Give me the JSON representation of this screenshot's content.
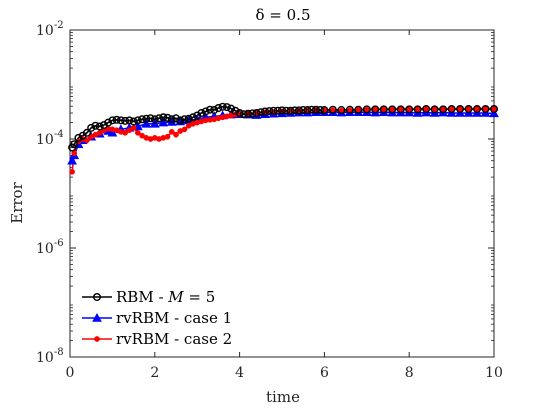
{
  "chart_data": {
    "type": "line",
    "title": "δ = 0.5",
    "xlabel": "time",
    "ylabel": "Error",
    "xlim": [
      0,
      10
    ],
    "ylim": [
      1e-08,
      0.01
    ],
    "yscale": "log",
    "grid": false,
    "legend_position": "bottom-left",
    "x_ticks": [
      "0",
      "2",
      "4",
      "6",
      "8",
      "10"
    ],
    "y_ticks": [
      {
        "base": "10",
        "exp": "-8"
      },
      {
        "base": "10",
        "exp": "-6"
      },
      {
        "base": "10",
        "exp": "-4"
      },
      {
        "base": "10",
        "exp": "-2"
      }
    ],
    "series": [
      {
        "name": "RBM - M = 5",
        "legend_main": "RBM - ",
        "legend_italic": "M",
        "legend_tail": " = 5",
        "color": "#000000",
        "marker": "circle",
        "points": [
          [
            0.05,
            7e-05
          ],
          [
            0.1,
            8e-05
          ],
          [
            0.2,
            0.000105
          ],
          [
            0.3,
            0.000115
          ],
          [
            0.4,
            0.00013
          ],
          [
            0.5,
            0.00016
          ],
          [
            0.6,
            0.000175
          ],
          [
            0.7,
            0.00017
          ],
          [
            0.8,
            0.00018
          ],
          [
            0.9,
            0.0002
          ],
          [
            1.0,
            0.00022
          ],
          [
            1.1,
            0.000225
          ],
          [
            1.2,
            0.00022
          ],
          [
            1.3,
            0.000215
          ],
          [
            1.4,
            0.00022
          ],
          [
            1.5,
            0.00021
          ],
          [
            1.6,
            0.00022
          ],
          [
            1.7,
            0.00023
          ],
          [
            1.8,
            0.000235
          ],
          [
            1.9,
            0.00024
          ],
          [
            2.0,
            0.00023
          ],
          [
            2.1,
            0.00024
          ],
          [
            2.2,
            0.00025
          ],
          [
            2.3,
            0.000245
          ],
          [
            2.4,
            0.00023
          ],
          [
            2.5,
            0.00024
          ],
          [
            2.6,
            0.00022
          ],
          [
            2.7,
            0.00023
          ],
          [
            2.8,
            0.000235
          ],
          [
            2.9,
            0.00025
          ],
          [
            3.0,
            0.00027
          ],
          [
            3.1,
            0.0003
          ],
          [
            3.2,
            0.00032
          ],
          [
            3.3,
            0.000345
          ],
          [
            3.4,
            0.00034
          ],
          [
            3.5,
            0.00037
          ],
          [
            3.6,
            0.00039
          ],
          [
            3.7,
            0.000385
          ],
          [
            3.8,
            0.00036
          ],
          [
            3.9,
            0.00033
          ],
          [
            4.0,
            0.0003
          ],
          [
            4.1,
            0.000285
          ],
          [
            4.2,
            0.00029
          ],
          [
            4.3,
            0.000295
          ],
          [
            4.4,
            0.0003
          ],
          [
            4.5,
            0.00031
          ],
          [
            4.6,
            0.00032
          ],
          [
            4.7,
            0.000325
          ],
          [
            4.8,
            0.00033
          ],
          [
            4.9,
            0.00033
          ],
          [
            5.0,
            0.000335
          ],
          [
            5.1,
            0.00033
          ],
          [
            5.2,
            0.00033
          ],
          [
            5.3,
            0.000335
          ],
          [
            5.4,
            0.000335
          ],
          [
            5.5,
            0.00034
          ],
          [
            5.6,
            0.00034
          ],
          [
            5.7,
            0.000345
          ],
          [
            5.8,
            0.000345
          ],
          [
            5.9,
            0.00034
          ],
          [
            6.0,
            0.00034
          ],
          [
            6.2,
            0.000345
          ],
          [
            6.4,
            0.00034
          ],
          [
            6.6,
            0.000345
          ],
          [
            6.8,
            0.000345
          ],
          [
            7.0,
            0.00035
          ],
          [
            7.2,
            0.00035
          ],
          [
            7.4,
            0.00035
          ],
          [
            7.6,
            0.00035
          ],
          [
            7.8,
            0.00035
          ],
          [
            8.0,
            0.00035
          ],
          [
            8.2,
            0.00035
          ],
          [
            8.4,
            0.000355
          ],
          [
            8.6,
            0.00035
          ],
          [
            8.8,
            0.00035
          ],
          [
            9.0,
            0.000355
          ],
          [
            9.2,
            0.000355
          ],
          [
            9.4,
            0.000355
          ],
          [
            9.6,
            0.000355
          ],
          [
            9.8,
            0.000355
          ],
          [
            10.0,
            0.000355
          ]
        ]
      },
      {
        "name": "rvRBM - case 1",
        "legend_main": "rvRBM - case 1",
        "legend_italic": "",
        "legend_tail": "",
        "color": "#0000ff",
        "marker": "triangle",
        "points": [
          [
            0.05,
            4e-05
          ],
          [
            0.1,
            5e-05
          ],
          [
            0.2,
            8e-05
          ],
          [
            0.3,
            9.5e-05
          ],
          [
            0.5,
            0.00011
          ],
          [
            0.7,
            0.000125
          ],
          [
            0.9,
            0.00014
          ],
          [
            1.0,
            0.00013
          ],
          [
            1.2,
            0.00015
          ],
          [
            1.4,
            0.00016
          ],
          [
            1.6,
            0.00017
          ],
          [
            1.8,
            0.00019
          ],
          [
            2.0,
            0.00019
          ],
          [
            2.2,
            0.0002
          ],
          [
            2.4,
            0.000205
          ],
          [
            2.6,
            0.00021
          ],
          [
            2.8,
            0.00022
          ],
          [
            3.0,
            0.00023
          ],
          [
            3.2,
            0.00025
          ],
          [
            3.4,
            0.00026
          ],
          [
            3.6,
            0.00027
          ],
          [
            3.8,
            0.00028
          ],
          [
            4.0,
            0.000285
          ],
          [
            4.2,
            0.00028
          ],
          [
            4.4,
            0.000275
          ],
          [
            4.6,
            0.000285
          ],
          [
            4.8,
            0.00029
          ],
          [
            5.0,
            0.000295
          ],
          [
            5.2,
            0.0003
          ],
          [
            5.4,
            0.000305
          ],
          [
            5.6,
            0.000305
          ],
          [
            5.8,
            0.00031
          ],
          [
            6.0,
            0.00031
          ],
          [
            6.2,
            0.00031
          ],
          [
            6.4,
            0.000305
          ],
          [
            6.6,
            0.00031
          ],
          [
            6.8,
            0.00031
          ],
          [
            7.0,
            0.00031
          ],
          [
            7.2,
            0.000305
          ],
          [
            7.4,
            0.00031
          ],
          [
            7.6,
            0.000305
          ],
          [
            7.8,
            0.000305
          ],
          [
            8.0,
            0.000305
          ],
          [
            8.2,
            0.0003
          ],
          [
            8.4,
            0.000305
          ],
          [
            8.6,
            0.0003
          ],
          [
            8.8,
            0.000305
          ],
          [
            9.0,
            0.0003
          ],
          [
            9.2,
            0.0003
          ],
          [
            9.4,
            0.0003
          ],
          [
            9.6,
            0.0003
          ],
          [
            9.8,
            0.0003
          ],
          [
            10.0,
            0.000295
          ]
        ]
      },
      {
        "name": "rvRBM - case 2",
        "legend_main": "rvRBM - case 2",
        "legend_italic": "",
        "legend_tail": "",
        "color": "#ff0000",
        "marker": "dot",
        "points": [
          [
            0.05,
            2.5e-05
          ],
          [
            0.1,
            5.5e-05
          ],
          [
            0.2,
            9e-05
          ],
          [
            0.3,
            0.0001
          ],
          [
            0.4,
            9.5e-05
          ],
          [
            0.5,
            0.00011
          ],
          [
            0.6,
            0.00012
          ],
          [
            0.7,
            0.00013
          ],
          [
            0.8,
            0.000145
          ],
          [
            0.9,
            0.000155
          ],
          [
            1.0,
            0.00015
          ],
          [
            1.1,
            0.000145
          ],
          [
            1.2,
            0.000135
          ],
          [
            1.3,
            0.00013
          ],
          [
            1.4,
            0.000145
          ],
          [
            1.5,
            0.00016
          ],
          [
            1.6,
            0.00013
          ],
          [
            1.7,
            0.000115
          ],
          [
            1.8,
            0.000105
          ],
          [
            1.9,
            0.0001
          ],
          [
            2.0,
            0.000105
          ],
          [
            2.1,
            0.0001
          ],
          [
            2.2,
            0.000105
          ],
          [
            2.3,
            0.00011
          ],
          [
            2.4,
            0.000135
          ],
          [
            2.5,
            0.00012
          ],
          [
            2.6,
            0.00014
          ],
          [
            2.7,
            0.00015
          ],
          [
            2.8,
            0.000175
          ],
          [
            2.9,
            0.00019
          ],
          [
            3.0,
            0.0002
          ],
          [
            3.1,
            0.00021
          ],
          [
            3.2,
            0.00022
          ],
          [
            3.3,
            0.000225
          ],
          [
            3.4,
            0.00023
          ],
          [
            3.5,
            0.00024
          ],
          [
            3.6,
            0.00025
          ],
          [
            3.7,
            0.00026
          ],
          [
            3.8,
            0.00027
          ],
          [
            3.9,
            0.00028
          ],
          [
            4.0,
            0.00029
          ],
          [
            4.2,
            0.000295
          ],
          [
            4.4,
            0.0003
          ],
          [
            4.6,
            0.000305
          ],
          [
            4.8,
            0.00031
          ],
          [
            5.0,
            0.00032
          ],
          [
            5.2,
            0.000325
          ],
          [
            5.4,
            0.00033
          ],
          [
            5.6,
            0.000335
          ],
          [
            5.8,
            0.00034
          ],
          [
            6.0,
            0.000335
          ],
          [
            6.2,
            0.000335
          ],
          [
            6.4,
            0.00033
          ],
          [
            6.6,
            0.000335
          ],
          [
            6.8,
            0.00034
          ],
          [
            7.0,
            0.000345
          ],
          [
            7.2,
            0.00035
          ],
          [
            7.4,
            0.00035
          ],
          [
            7.6,
            0.00035
          ],
          [
            7.8,
            0.000355
          ],
          [
            8.0,
            0.000355
          ],
          [
            8.2,
            0.000355
          ],
          [
            8.4,
            0.000355
          ],
          [
            8.6,
            0.000355
          ],
          [
            8.8,
            0.000355
          ],
          [
            9.0,
            0.000355
          ],
          [
            9.2,
            0.000355
          ],
          [
            9.4,
            0.000355
          ],
          [
            9.6,
            0.000355
          ],
          [
            9.8,
            0.000355
          ],
          [
            10.0,
            0.000355
          ]
        ]
      }
    ]
  }
}
